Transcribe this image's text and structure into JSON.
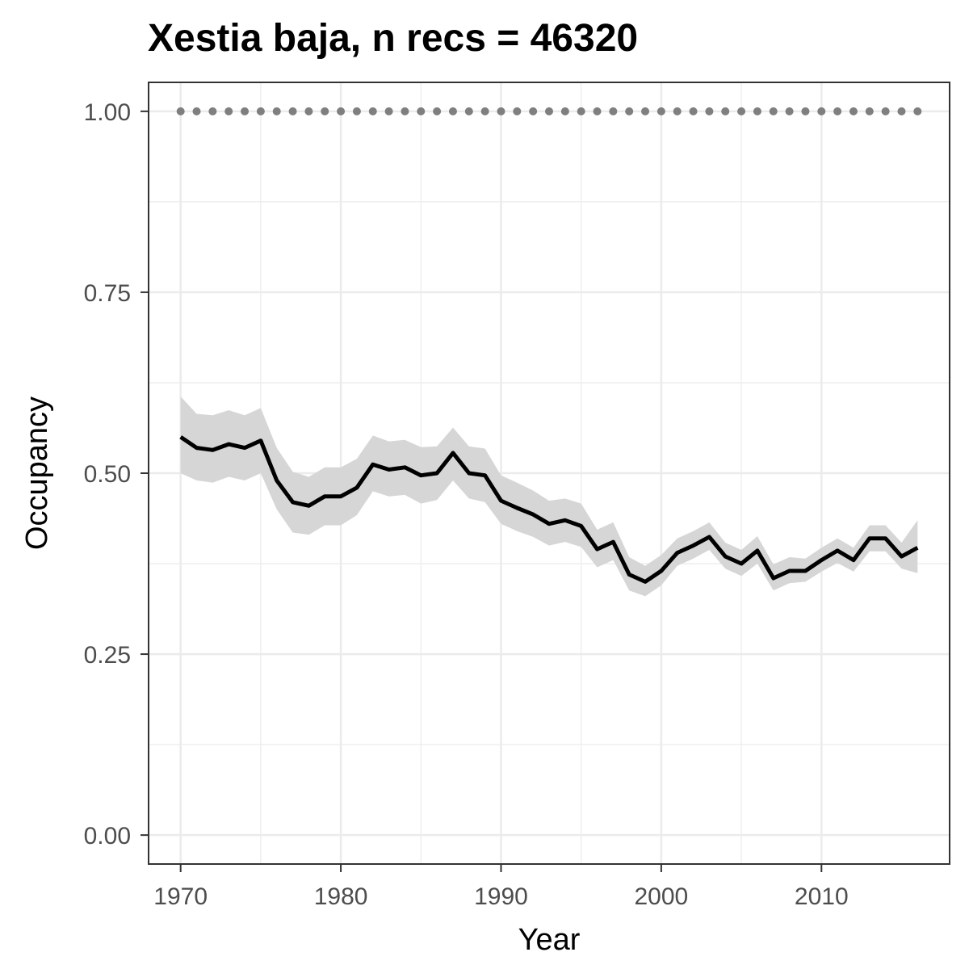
{
  "chart_data": {
    "type": "line",
    "title": "Xestia baja, n recs = 46320",
    "xlabel": "Year",
    "ylabel": "Occupancy",
    "xlim": [
      1968,
      2018
    ],
    "ylim": [
      -0.04,
      1.04
    ],
    "x_ticks": [
      1970,
      1980,
      1990,
      2000,
      2010
    ],
    "x_tick_labels": [
      "1970",
      "1980",
      "1990",
      "2000",
      "2010"
    ],
    "y_ticks": [
      0,
      0.25,
      0.5,
      0.75,
      1.0
    ],
    "y_tick_labels": [
      "0.00",
      "0.25",
      "0.50",
      "0.75",
      "1.00"
    ],
    "grid": true,
    "colors": {
      "mean_line": "#000000",
      "ribbon": "#d6d6d6",
      "reference_points": "#7f7f7f",
      "grid": "#ebebeb",
      "panel_border": "#333333"
    },
    "x": [
      1970,
      1971,
      1972,
      1973,
      1974,
      1975,
      1976,
      1977,
      1978,
      1979,
      1980,
      1981,
      1982,
      1983,
      1984,
      1985,
      1986,
      1987,
      1988,
      1989,
      1990,
      1991,
      1992,
      1993,
      1994,
      1995,
      1996,
      1997,
      1998,
      1999,
      2000,
      2001,
      2002,
      2003,
      2004,
      2005,
      2006,
      2007,
      2008,
      2009,
      2010,
      2011,
      2012,
      2013,
      2014,
      2015,
      2016
    ],
    "series": [
      {
        "values": [
          0.55,
          0.535,
          0.532,
          0.54,
          0.535,
          0.545,
          0.49,
          0.46,
          0.455,
          0.468,
          0.468,
          0.48,
          0.512,
          0.505,
          0.508,
          0.497,
          0.5,
          0.528,
          0.5,
          0.497,
          0.462,
          0.452,
          0.443,
          0.43,
          0.435,
          0.427,
          0.395,
          0.405,
          0.36,
          0.35,
          0.365,
          0.39,
          0.4,
          0.412,
          0.385,
          0.375,
          0.393,
          0.355,
          0.365,
          0.365,
          0.38,
          0.393,
          0.38,
          0.41,
          0.41,
          0.385,
          0.397
        ],
        "lower": [
          0.5,
          0.49,
          0.487,
          0.495,
          0.49,
          0.5,
          0.45,
          0.418,
          0.415,
          0.428,
          0.428,
          0.442,
          0.475,
          0.468,
          0.47,
          0.458,
          0.463,
          0.49,
          0.465,
          0.46,
          0.43,
          0.42,
          0.412,
          0.4,
          0.405,
          0.398,
          0.37,
          0.38,
          0.338,
          0.33,
          0.345,
          0.372,
          0.382,
          0.394,
          0.368,
          0.358,
          0.375,
          0.338,
          0.348,
          0.35,
          0.364,
          0.376,
          0.364,
          0.392,
          0.392,
          0.368,
          0.362
        ],
        "upper": [
          0.606,
          0.582,
          0.58,
          0.587,
          0.58,
          0.59,
          0.535,
          0.502,
          0.495,
          0.508,
          0.508,
          0.52,
          0.552,
          0.544,
          0.546,
          0.536,
          0.537,
          0.563,
          0.537,
          0.534,
          0.497,
          0.487,
          0.476,
          0.462,
          0.465,
          0.458,
          0.422,
          0.432,
          0.384,
          0.372,
          0.387,
          0.41,
          0.42,
          0.432,
          0.404,
          0.394,
          0.413,
          0.374,
          0.384,
          0.382,
          0.397,
          0.41,
          0.397,
          0.428,
          0.428,
          0.404,
          0.435
        ]
      },
      {
        "values": [
          1,
          1,
          1,
          1,
          1,
          1,
          1,
          1,
          1,
          1,
          1,
          1,
          1,
          1,
          1,
          1,
          1,
          1,
          1,
          1,
          1,
          1,
          1,
          1,
          1,
          1,
          1,
          1,
          1,
          1,
          1,
          1,
          1,
          1,
          1,
          1,
          1,
          1,
          1,
          1,
          1,
          1,
          1,
          1,
          1,
          1,
          1
        ]
      }
    ]
  }
}
